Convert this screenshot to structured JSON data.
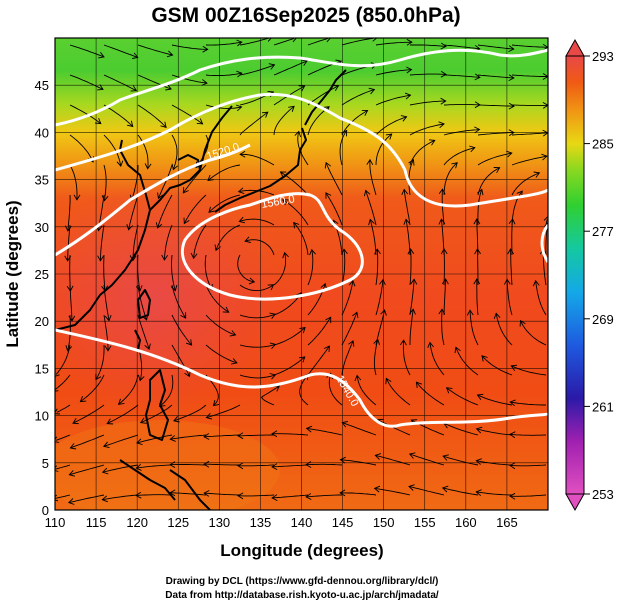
{
  "title": "GSM 00Z16Sep2025 (850.0hPa)",
  "xlabel": "Longitude (degrees)",
  "ylabel": "Latitude (degrees)",
  "credits": {
    "line1": "Drawing by DCL (https://www.gfd-dennou.org/library/dcl/)",
    "line2": "Data from http://database.rish.kyoto-u.ac.jp/arch/jmadata/"
  },
  "map": {
    "lon_range": [
      110,
      170
    ],
    "lat_range": [
      0,
      50
    ],
    "lon_ticks": [
      "110",
      "115",
      "120",
      "125",
      "130",
      "135",
      "140",
      "145",
      "150",
      "155",
      "160",
      "165"
    ],
    "lat_ticks": [
      "0",
      "5",
      "10",
      "15",
      "20",
      "25",
      "30",
      "35",
      "40",
      "45"
    ],
    "grid": true
  },
  "colorbar": {
    "ticks": [
      "253",
      "261",
      "269",
      "277",
      "285",
      "293"
    ],
    "range": [
      253,
      293
    ],
    "colors": [
      "#d43fb5",
      "#5a14a8",
      "#2a2ad0",
      "#1e8cf0",
      "#14c8c8",
      "#20d060",
      "#7ad820",
      "#f0e014",
      "#f09a10",
      "#f05a14",
      "#e84848"
    ]
  },
  "contours": [
    {
      "label": "1520.0"
    },
    {
      "label": "1560.0"
    },
    {
      "label": "1540.0"
    }
  ]
}
